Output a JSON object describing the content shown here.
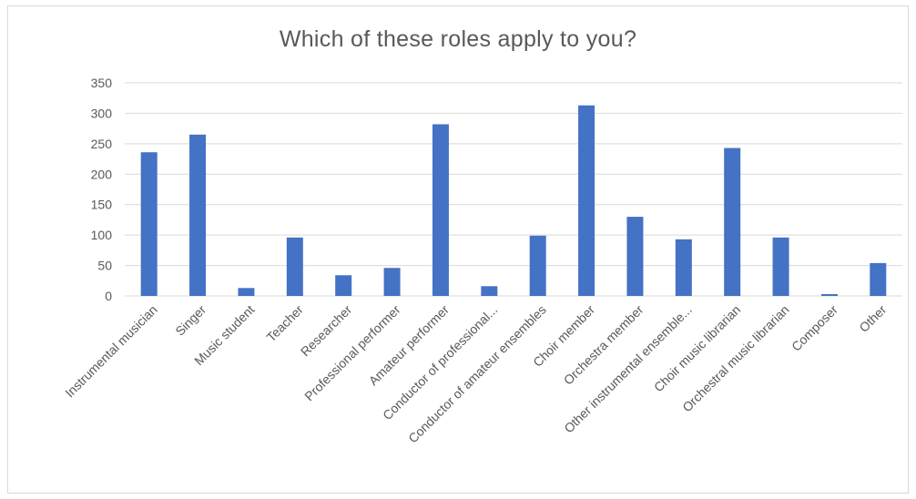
{
  "chart_data": {
    "type": "bar",
    "title": "Which of these roles apply to you?",
    "categories": [
      "Instrumental musician",
      "Singer",
      "Music student",
      "Teacher",
      "Researcher",
      "Professional performer",
      "Amateur performer",
      "Conductor of professional...",
      "Conductor of amateur ensembles",
      "Choir member",
      "Orchestra member",
      "Other instrumental ensemble...",
      "Choir music librarian",
      "Orchestral music librarian",
      "Composer",
      "Other"
    ],
    "values": [
      236,
      265,
      13,
      96,
      34,
      46,
      282,
      16,
      99,
      313,
      130,
      93,
      243,
      96,
      3,
      54
    ],
    "ylim": [
      0,
      350
    ],
    "yticks": [
      0,
      50,
      100,
      150,
      200,
      250,
      300,
      350
    ],
    "grid": true,
    "legend": "none",
    "colors": {
      "bar": "#4472c4",
      "grid": "#d9d9d9",
      "text": "#595959"
    }
  }
}
